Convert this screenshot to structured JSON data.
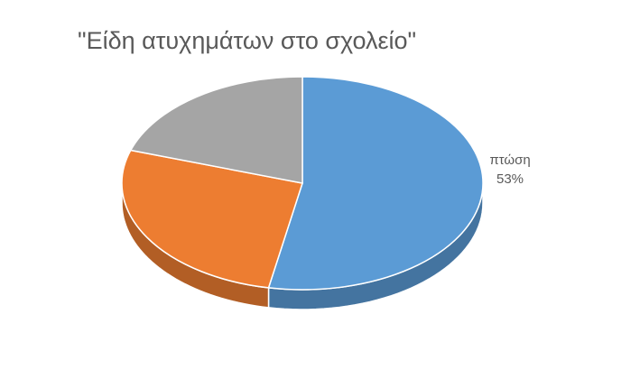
{
  "chart_data": {
    "type": "pie",
    "title": "\"Είδη ατυχημάτων στο σχολείο\"",
    "categories": [
      "πτώση",
      null,
      null
    ],
    "values": [
      53,
      27,
      20
    ],
    "value_labels": [
      "53%",
      null,
      null
    ],
    "colors": [
      "#5b9bd5",
      "#ed7d31",
      "#a5a5a5"
    ]
  }
}
